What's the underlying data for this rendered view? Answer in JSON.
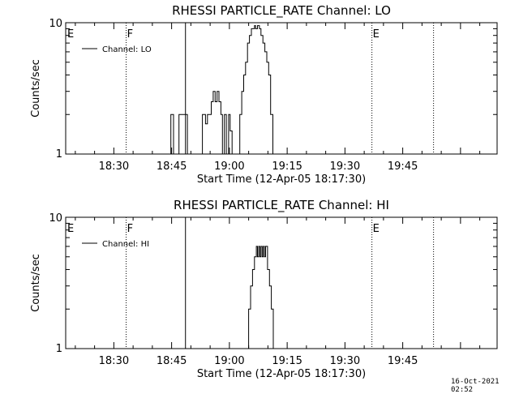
{
  "chart_data": [
    {
      "type": "line",
      "title": "RHESSI PARTICLE_RATE Channel: LO",
      "xlabel": "Start Time (12-Apr-05 18:17:30)",
      "ylabel": "Counts/sec",
      "x_unit": "minutes after 18:17:30",
      "xlim": [
        0,
        112
      ],
      "ylim": [
        1,
        10
      ],
      "yscale": "log",
      "x_ticks": [
        "18:30",
        "18:45",
        "19:00",
        "19:15",
        "19:30",
        "19:45"
      ],
      "y_ticks": [
        "1",
        "10"
      ],
      "legend": {
        "label": "Channel: LO",
        "placement": "top-left"
      },
      "markers": [
        {
          "label": "E",
          "x": 0.0,
          "style": "dotted"
        },
        {
          "label": "F",
          "x": 15.7,
          "style": "dotted"
        },
        {
          "label": "",
          "x": 31.1,
          "style": "solid"
        },
        {
          "label": "E",
          "x": 79.5,
          "style": "dotted"
        },
        {
          "label": "",
          "x": 95.5,
          "style": "dotted"
        }
      ],
      "series": [
        {
          "name": "Channel: LO",
          "x": [
            26.5,
            27.3,
            27.6,
            28.0,
            28.3,
            29.4,
            29.7,
            30.2,
            30.5,
            31.2,
            31.6,
            32.1,
            34.8,
            35.5,
            35.8,
            36.3,
            36.8,
            37.4,
            37.8,
            38.3,
            38.8,
            39.3,
            39.8,
            40.3,
            40.7,
            41.2,
            41.7,
            42.3,
            42.7,
            43.2,
            44.8,
            45.2,
            45.7,
            46.2,
            46.7,
            47.2,
            47.7,
            48.2,
            48.7,
            49.0,
            49.3,
            49.8,
            50.3,
            50.7,
            51.2,
            51.7,
            52.2,
            52.7,
            53.2,
            53.8
          ],
          "y": [
            1,
            2,
            2,
            1,
            1,
            2,
            2,
            2,
            2,
            2,
            1,
            1,
            1,
            2,
            2,
            1.7,
            2,
            2,
            2.5,
            3,
            2.5,
            3,
            2.5,
            2,
            1,
            2,
            1,
            2,
            1.5,
            1,
            1,
            2,
            3,
            4,
            5,
            7,
            8,
            9,
            9,
            9.5,
            9,
            9.5,
            9,
            8,
            7,
            6,
            5,
            4,
            2,
            1
          ]
        }
      ]
    },
    {
      "type": "line",
      "title": "RHESSI PARTICLE_RATE Channel: HI",
      "xlabel": "Start Time (12-Apr-05 18:17:30)",
      "ylabel": "Counts/sec",
      "x_unit": "minutes after 18:17:30",
      "xlim": [
        0,
        112
      ],
      "ylim": [
        1,
        10
      ],
      "yscale": "log",
      "x_ticks": [
        "18:30",
        "18:45",
        "19:00",
        "19:15",
        "19:30",
        "19:45"
      ],
      "y_ticks": [
        "1",
        "10"
      ],
      "legend": {
        "label": "Channel: HI",
        "placement": "top-left"
      },
      "markers": [
        {
          "label": "E",
          "x": 0.0,
          "style": "dotted"
        },
        {
          "label": "F",
          "x": 15.7,
          "style": "dotted"
        },
        {
          "label": "",
          "x": 31.1,
          "style": "solid"
        },
        {
          "label": "E",
          "x": 79.5,
          "style": "dotted"
        },
        {
          "label": "",
          "x": 95.5,
          "style": "dotted"
        }
      ],
      "series": [
        {
          "name": "Channel: HI",
          "x": [
            47.0,
            47.5,
            48.0,
            48.5,
            49.0,
            49.5,
            49.8,
            50.1,
            50.4,
            50.7,
            51.0,
            51.3,
            51.6,
            51.9,
            52.4,
            52.9,
            53.4,
            53.9
          ],
          "y": [
            1,
            2,
            3,
            4,
            5,
            6,
            5,
            6,
            5,
            6,
            5,
            6,
            5,
            6,
            4,
            3,
            2,
            1
          ]
        }
      ]
    }
  ],
  "timestamp": "16-Oct-2021 02:52"
}
